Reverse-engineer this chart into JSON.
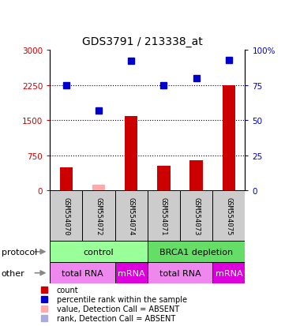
{
  "title": "GDS3791 / 213338_at",
  "samples": [
    "GSM554070",
    "GSM554072",
    "GSM554074",
    "GSM554071",
    "GSM554073",
    "GSM554075"
  ],
  "count_values": [
    500,
    120,
    1580,
    520,
    650,
    2250
  ],
  "count_absent": [
    false,
    true,
    false,
    false,
    false,
    false
  ],
  "percentile_values": [
    75,
    57,
    92,
    75,
    80,
    93
  ],
  "percentile_absent": [
    false,
    false,
    false,
    false,
    false,
    false
  ],
  "ylim_left": [
    0,
    3000
  ],
  "ylim_right": [
    0,
    100
  ],
  "yticks_left": [
    0,
    750,
    1500,
    2250,
    3000
  ],
  "yticks_right": [
    0,
    25,
    50,
    75,
    100
  ],
  "ytick_labels_left": [
    "0",
    "750",
    "1500",
    "2250",
    "3000"
  ],
  "ytick_labels_right": [
    "0",
    "25",
    "50",
    "75",
    "100%"
  ],
  "hlines": [
    750,
    1500,
    2250
  ],
  "color_count": "#cc0000",
  "color_count_absent": "#ffaaaa",
  "color_percentile": "#0000cc",
  "color_percentile_absent": "#aaaadd",
  "legend_items": [
    "count",
    "percentile rank within the sample",
    "value, Detection Call = ABSENT",
    "rank, Detection Call = ABSENT"
  ],
  "legend_colors": [
    "#cc0000",
    "#0000cc",
    "#ffaaaa",
    "#aaaadd"
  ],
  "color_control": "#99ff99",
  "color_brca": "#66dd66",
  "color_totalrna": "#ee88ee",
  "color_mrna": "#dd00dd",
  "bar_width": 0.4
}
